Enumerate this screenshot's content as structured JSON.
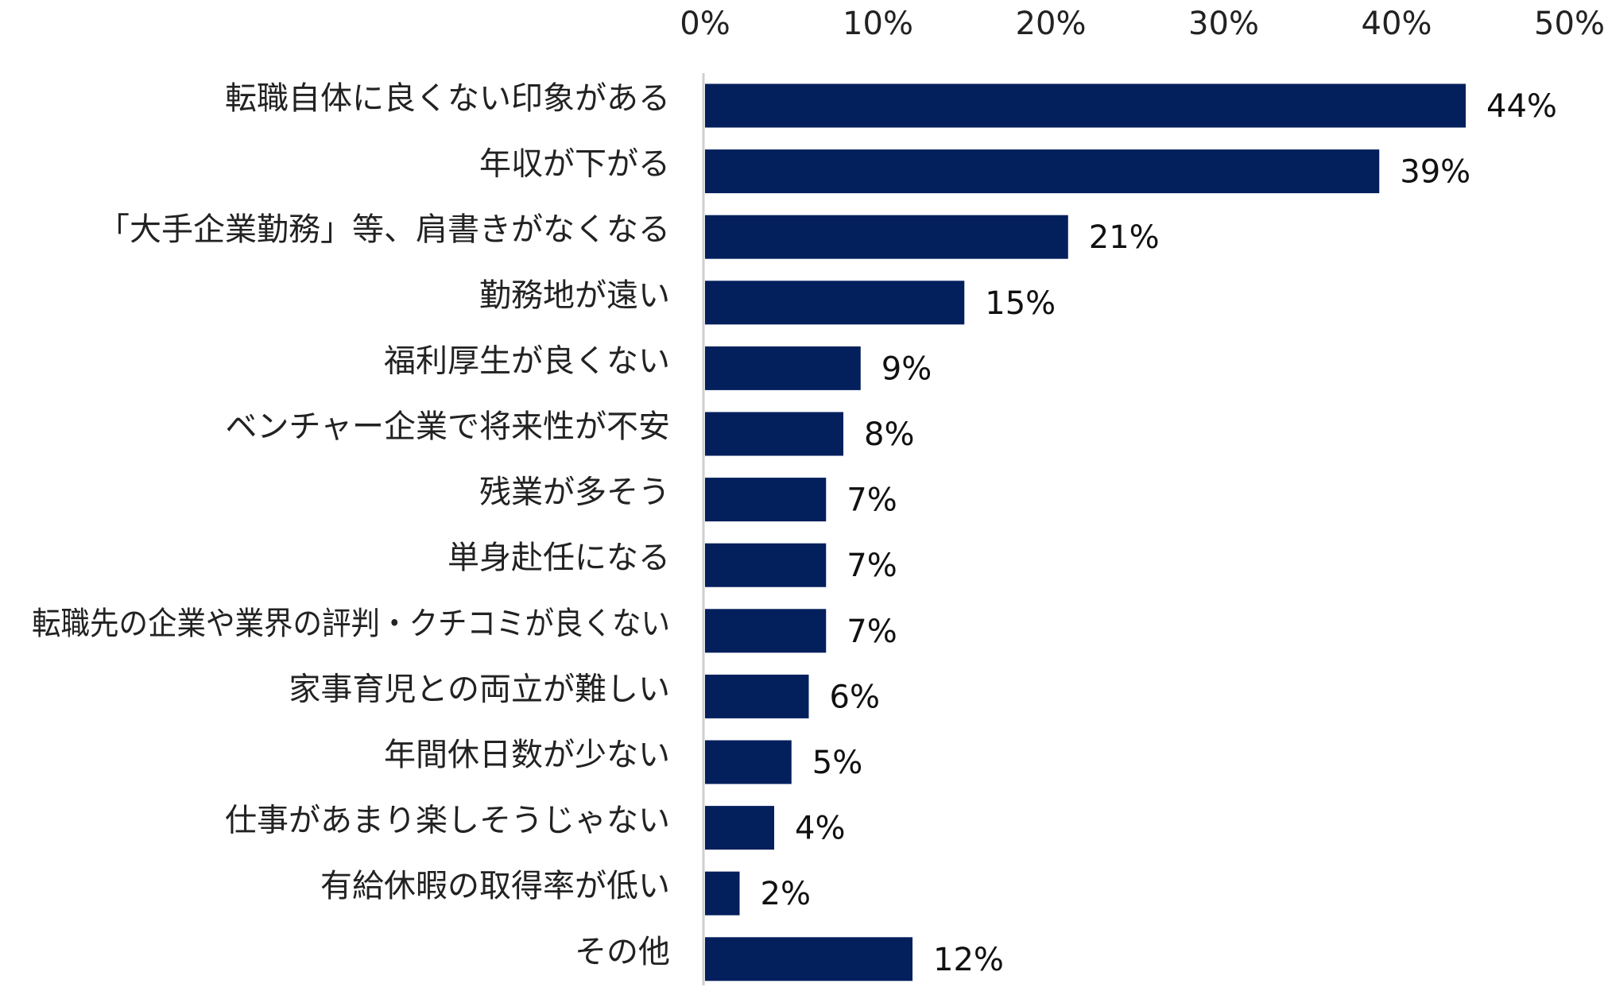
{
  "chart_data": {
    "type": "bar",
    "orientation": "horizontal",
    "x_axis_position": "top",
    "xlim": [
      0,
      50
    ],
    "x_ticks": [
      "0%",
      "10%",
      "20%",
      "30%",
      "40%",
      "50%"
    ],
    "grid": false,
    "legend": "none",
    "bar_color": "#031F5C",
    "categories": [
      "転職自体に良くない印象がある",
      "年収が下がる",
      "「大手企業勤務」等、肩書きがなくなる",
      "勤務地が遠い",
      "福利厚生が良くない",
      "ベンチャー企業で将来性が不安",
      "残業が多そう",
      "単身赴任になる",
      "転職先の企業や業界の評判・クチコミが良くない",
      "家事育児との両立が難しい",
      "年間休日数が少ない",
      "仕事があまり楽しそうじゃない",
      "有給休暇の取得率が低い",
      "その他"
    ],
    "values": [
      44,
      39,
      21,
      15,
      9,
      8,
      7,
      7,
      7,
      6,
      5,
      4,
      2,
      12
    ],
    "value_labels": [
      "44%",
      "39%",
      "21%",
      "15%",
      "9%",
      "8%",
      "7%",
      "7%",
      "7%",
      "6%",
      "5%",
      "4%",
      "2%",
      "12%"
    ]
  }
}
